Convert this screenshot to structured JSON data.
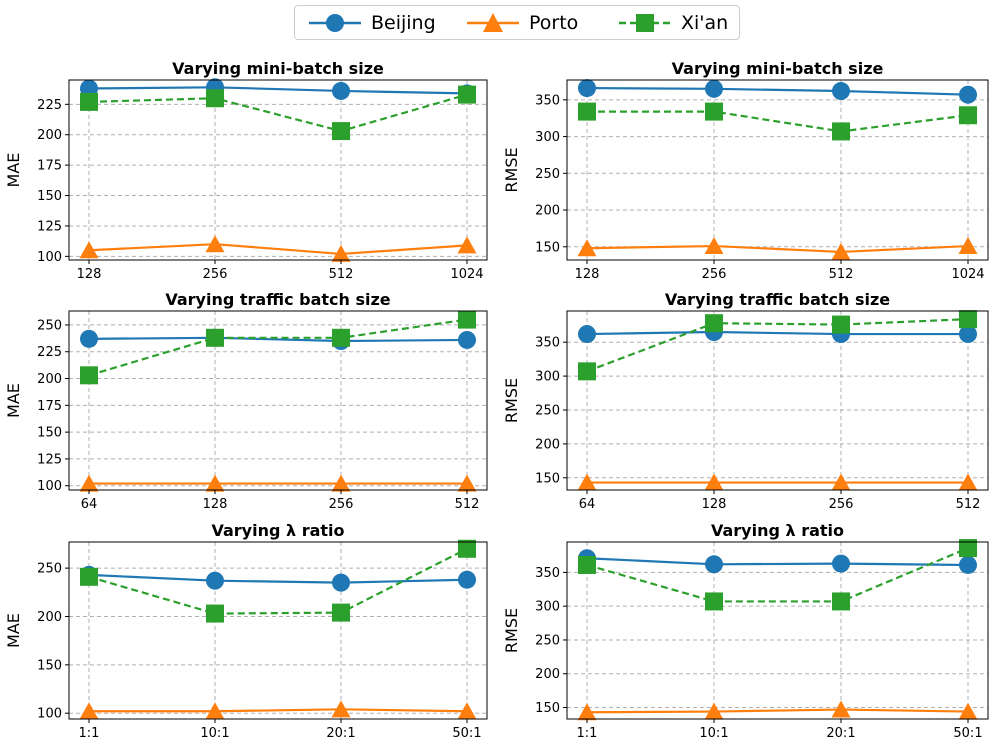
{
  "legend": [
    {
      "name": "Beijing",
      "color": "#1f77b4",
      "marker": "circle",
      "dash": "solid"
    },
    {
      "name": "Porto",
      "color": "#ff7f0e",
      "marker": "triangle",
      "dash": "solid"
    },
    {
      "name": "Xi'an",
      "color": "#2ca02c",
      "marker": "square",
      "dash": "dashed"
    }
  ],
  "chart_data": [
    {
      "type": "line",
      "title": "Varying mini-batch size",
      "xlabel": "",
      "ylabel": "MAE",
      "categories": [
        "128",
        "256",
        "512",
        "1024"
      ],
      "ylim": [
        97,
        245
      ],
      "yticks": [
        100,
        125,
        150,
        175,
        200,
        225
      ],
      "grid": true,
      "series": [
        {
          "name": "Beijing",
          "values": [
            238,
            239,
            236,
            234
          ]
        },
        {
          "name": "Porto",
          "values": [
            105,
            110,
            102,
            109
          ]
        },
        {
          "name": "Xi'an",
          "values": [
            227,
            230,
            203,
            233
          ]
        }
      ]
    },
    {
      "type": "line",
      "title": "Varying mini-batch size",
      "xlabel": "",
      "ylabel": "RMSE",
      "categories": [
        "128",
        "256",
        "512",
        "1024"
      ],
      "ylim": [
        132,
        377
      ],
      "yticks": [
        150,
        200,
        250,
        300,
        350
      ],
      "grid": true,
      "series": [
        {
          "name": "Beijing",
          "values": [
            366,
            365,
            362,
            357
          ]
        },
        {
          "name": "Porto",
          "values": [
            148,
            151,
            143,
            151
          ]
        },
        {
          "name": "Xi'an",
          "values": [
            334,
            334,
            307,
            329
          ]
        }
      ]
    },
    {
      "type": "line",
      "title": "Varying traffic batch size",
      "xlabel": "",
      "ylabel": "MAE",
      "categories": [
        "64",
        "128",
        "256",
        "512"
      ],
      "ylim": [
        96,
        263
      ],
      "yticks": [
        100,
        125,
        150,
        175,
        200,
        225,
        250
      ],
      "grid": true,
      "series": [
        {
          "name": "Beijing",
          "values": [
            237,
            238,
            235,
            236
          ]
        },
        {
          "name": "Porto",
          "values": [
            102,
            102,
            102,
            102
          ]
        },
        {
          "name": "Xi'an",
          "values": [
            203,
            238,
            238,
            255
          ]
        }
      ]
    },
    {
      "type": "line",
      "title": "Varying traffic batch size",
      "xlabel": "",
      "ylabel": "RMSE",
      "categories": [
        "64",
        "128",
        "256",
        "512"
      ],
      "ylim": [
        132,
        396
      ],
      "yticks": [
        150,
        200,
        250,
        300,
        350
      ],
      "grid": true,
      "series": [
        {
          "name": "Beijing",
          "values": [
            362,
            365,
            362,
            362
          ]
        },
        {
          "name": "Porto",
          "values": [
            143,
            143,
            143,
            143
          ]
        },
        {
          "name": "Xi'an",
          "values": [
            307,
            378,
            376,
            384
          ]
        }
      ]
    },
    {
      "type": "line",
      "title": "Varying λ ratio",
      "xlabel": "",
      "ylabel": "MAE",
      "categories": [
        "1:1",
        "10:1",
        "20:1",
        "50:1"
      ],
      "ylim": [
        94,
        277
      ],
      "yticks": [
        100,
        150,
        200,
        250
      ],
      "grid": true,
      "series": [
        {
          "name": "Beijing",
          "values": [
            243,
            237,
            235,
            238
          ]
        },
        {
          "name": "Porto",
          "values": [
            102,
            102,
            104,
            102
          ]
        },
        {
          "name": "Xi'an",
          "values": [
            241,
            203,
            204,
            270
          ]
        }
      ]
    },
    {
      "type": "line",
      "title": "Varying λ ratio",
      "xlabel": "",
      "ylabel": "RMSE",
      "categories": [
        "1:1",
        "10:1",
        "20:1",
        "50:1"
      ],
      "ylim": [
        133,
        395
      ],
      "yticks": [
        150,
        200,
        250,
        300,
        350
      ],
      "grid": true,
      "series": [
        {
          "name": "Beijing",
          "values": [
            371,
            362,
            363,
            361
          ]
        },
        {
          "name": "Porto",
          "values": [
            143,
            144,
            147,
            144
          ]
        },
        {
          "name": "Xi'an",
          "values": [
            361,
            307,
            307,
            386
          ]
        }
      ]
    }
  ]
}
